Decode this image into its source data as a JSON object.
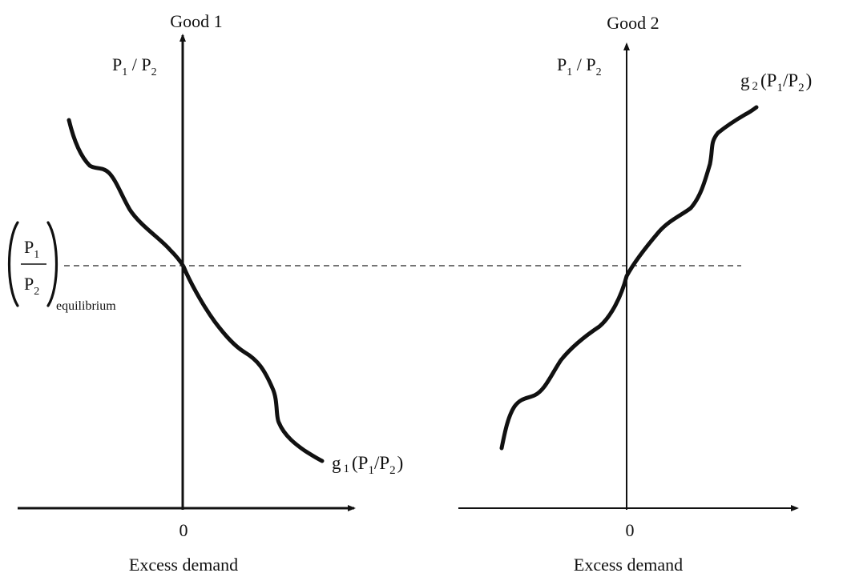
{
  "left_panel": {
    "title": "Good 1",
    "y_axis_label": {
      "base1": "P",
      "sub1": "1",
      "sep": " / ",
      "base2": "P",
      "sub2": "2"
    },
    "x_axis_label": "Excess demand",
    "origin_label": "0",
    "curve_label": {
      "fn": "g",
      "fn_sub": "1",
      "open": "(",
      "base1": "P",
      "sub1": "1",
      "sep": "/",
      "base2": "P",
      "sub2": "2",
      "close": ")"
    }
  },
  "right_panel": {
    "title": "Good 2",
    "y_axis_label": {
      "base1": "P",
      "sub1": "1",
      "sep": " / ",
      "base2": "P",
      "sub2": "2"
    },
    "x_axis_label": "Excess demand",
    "origin_label": "0",
    "curve_label": {
      "fn": "g",
      "fn_sub": "2",
      "open": "(",
      "base1": "P",
      "sub1": "1",
      "sep": "/",
      "base2": "P",
      "sub2": "2",
      "close": ")"
    }
  },
  "equilibrium_label": {
    "num_base": "P",
    "num_sub": "1",
    "den_base": "P",
    "den_sub": "2",
    "subscript": "equilibrium"
  },
  "colors": {
    "ink": "#111111",
    "background": "#ffffff"
  }
}
